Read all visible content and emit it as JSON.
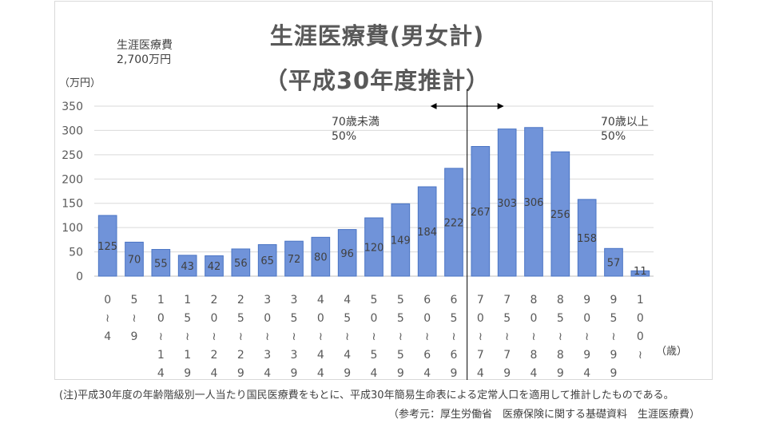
{
  "chart_data": {
    "type": "bar",
    "title": "生涯医療費(男女計)",
    "subtitle": "（平成30年度推計）",
    "ylabel": "（万円）",
    "xlabel": "（歳）",
    "ylim": [
      0,
      350
    ],
    "yticks": [
      "0",
      "50",
      "100",
      "150",
      "200",
      "250",
      "300",
      "350"
    ],
    "categories": [
      "0〜4",
      "5〜9",
      "10〜14",
      "15〜19",
      "20〜24",
      "25〜29",
      "30〜34",
      "35〜39",
      "40〜44",
      "45〜49",
      "50〜54",
      "55〜59",
      "60〜64",
      "65〜69",
      "70〜74",
      "75〜79",
      "80〜84",
      "85〜89",
      "90〜94",
      "95〜99",
      "100〜"
    ],
    "category_labels": [
      [
        "0",
        "〜",
        "4"
      ],
      [
        "5",
        "〜",
        "9"
      ],
      [
        "1",
        "0",
        "〜",
        "1",
        "4"
      ],
      [
        "1",
        "5",
        "〜",
        "1",
        "9"
      ],
      [
        "2",
        "0",
        "〜",
        "2",
        "4"
      ],
      [
        "2",
        "5",
        "〜",
        "2",
        "9"
      ],
      [
        "3",
        "0",
        "〜",
        "3",
        "4"
      ],
      [
        "3",
        "5",
        "〜",
        "3",
        "9"
      ],
      [
        "4",
        "0",
        "〜",
        "4",
        "4"
      ],
      [
        "4",
        "5",
        "〜",
        "4",
        "9"
      ],
      [
        "5",
        "0",
        "〜",
        "5",
        "4"
      ],
      [
        "5",
        "5",
        "〜",
        "5",
        "9"
      ],
      [
        "6",
        "0",
        "〜",
        "6",
        "4"
      ],
      [
        "6",
        "5",
        "〜",
        "6",
        "9"
      ],
      [
        "7",
        "0",
        "〜",
        "7",
        "4"
      ],
      [
        "7",
        "5",
        "〜",
        "7",
        "9"
      ],
      [
        "8",
        "0",
        "〜",
        "8",
        "4"
      ],
      [
        "8",
        "5",
        "〜",
        "8",
        "9"
      ],
      [
        "9",
        "0",
        "〜",
        "9",
        "4"
      ],
      [
        "9",
        "5",
        "〜",
        "9",
        "9"
      ],
      [
        "1",
        "0",
        "0",
        "〜"
      ]
    ],
    "values": [
      125,
      70,
      55,
      43,
      42,
      56,
      65,
      72,
      80,
      96,
      120,
      149,
      184,
      222,
      267,
      303,
      306,
      256,
      158,
      57,
      11
    ],
    "bar_color": "#7093d9",
    "bar_border": "#4a74c4",
    "grid": true,
    "divider_after_category": "65〜69"
  },
  "annotations": {
    "lifetime_label": "生涯医療費",
    "lifetime_value": "2,700万円",
    "under70_label": "70歳未満",
    "under70_share": "50%",
    "over70_label": "70歳以上",
    "over70_share": "50%"
  },
  "footnotes": {
    "note": "(注)平成30年度の年齢階級別一人当たり国民医療費をもとに、平成30年簡易生命表による定常人口を適用して推計したものである。",
    "source": "（参考元：厚生労働省　医療保険に関する基礎資料　生涯医療費）"
  }
}
